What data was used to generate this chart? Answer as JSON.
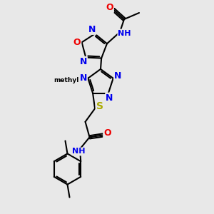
{
  "bg": "#e8e8e8",
  "N_color": "#0000ee",
  "O_color": "#ee0000",
  "S_color": "#aaaa00",
  "C_color": "#000000",
  "bond_lw": 1.5,
  "figsize": [
    3.0,
    3.0
  ],
  "dpi": 100,
  "xlim": [
    0,
    10
  ],
  "ylim": [
    0,
    10
  ]
}
